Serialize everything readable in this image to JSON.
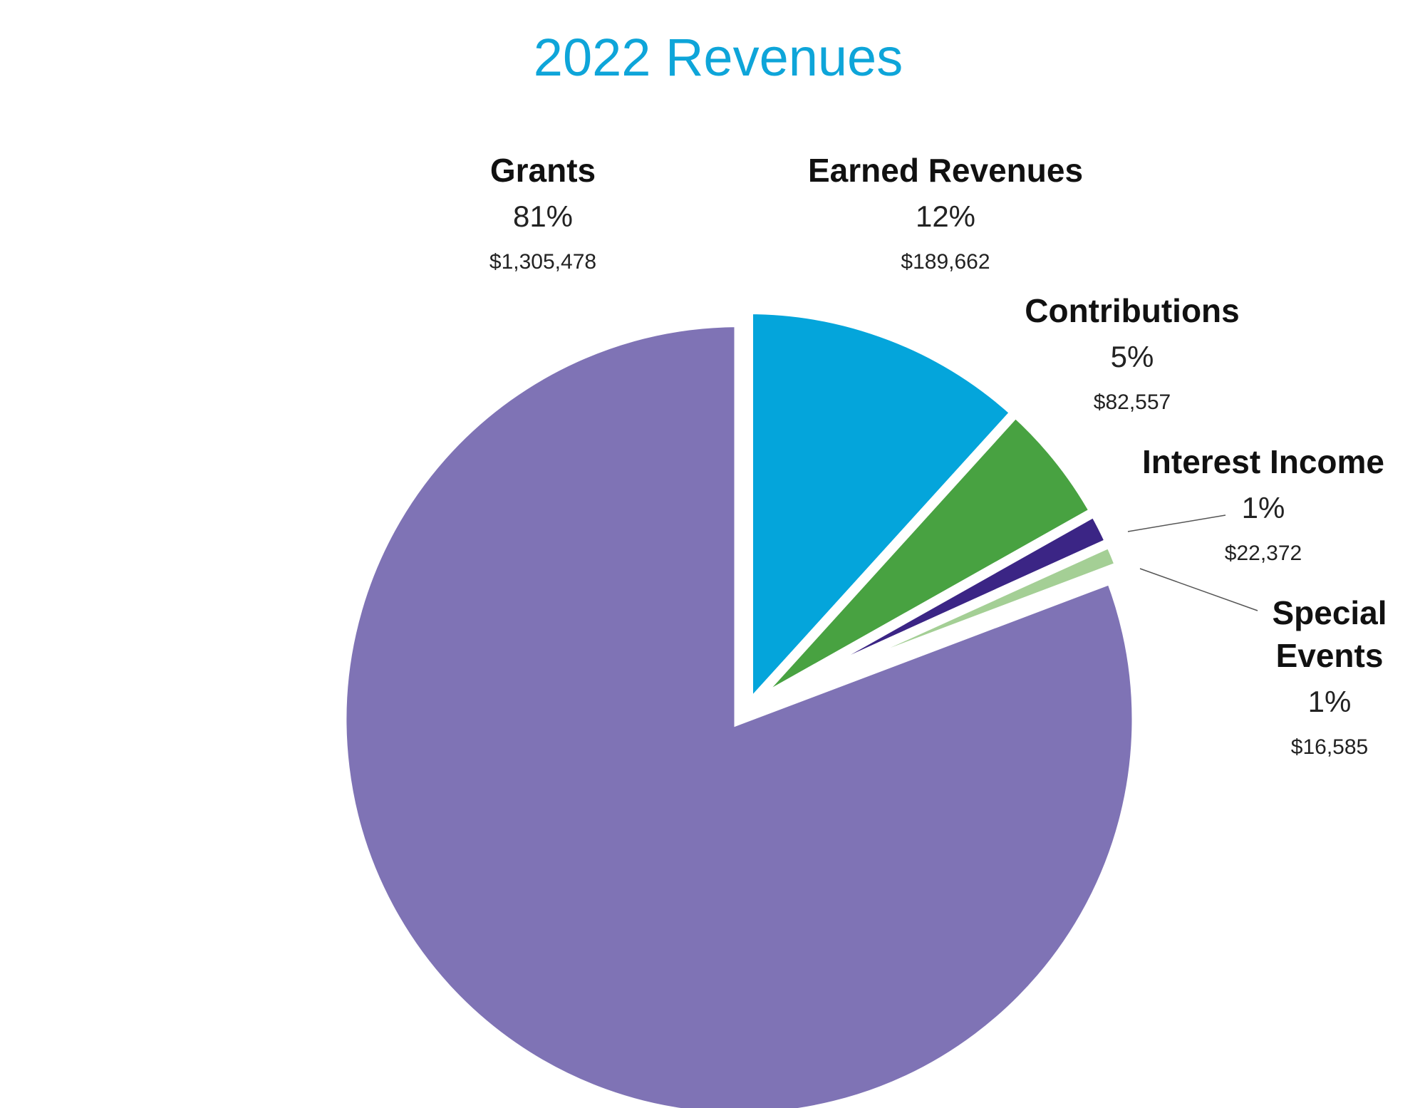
{
  "chart_data": {
    "type": "pie",
    "title": "2022 Revenues",
    "title_color": "#0ea5d9",
    "start_angle_deg": 0,
    "direction": "clockwise",
    "exploded_slice": "Grants",
    "slices": [
      {
        "label": "Earned Revenues",
        "percent_label": "12%",
        "value": 189662,
        "value_label": "$189,662",
        "color": "#04a5db"
      },
      {
        "label": "Contributions",
        "percent_label": "5%",
        "value": 82557,
        "value_label": "$82,557",
        "color": "#48a241"
      },
      {
        "label": "Interest Income",
        "percent_label": "1%",
        "value": 22372,
        "value_label": "$22,372",
        "color": "#3b2585"
      },
      {
        "label": "Special Events",
        "label_lines": [
          "Special",
          "Events"
        ],
        "percent_label": "1%",
        "value": 16585,
        "value_label": "$16,585",
        "color": "#a4cf95"
      },
      {
        "label": "Grants",
        "percent_label": "81%",
        "value": 1305478,
        "value_label": "$1,305,478",
        "color": "#7f73b5"
      }
    ]
  }
}
